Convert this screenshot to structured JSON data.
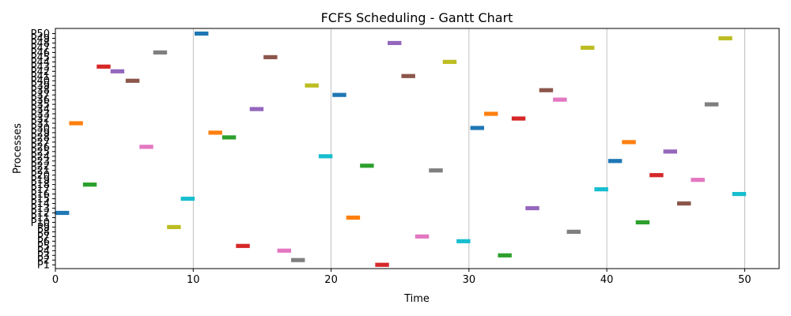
{
  "chart_data": {
    "type": "gantt",
    "title": "FCFS Scheduling - Gantt Chart",
    "xlabel": "Time",
    "ylabel": "Processes",
    "xlim": [
      0,
      52.5
    ],
    "xticks": [
      "0",
      "10",
      "20",
      "30",
      "40",
      "50"
    ],
    "xtick_values": [
      0,
      10,
      20,
      30,
      40,
      50
    ],
    "grid": "vertical",
    "series": [
      {
        "name": "P1",
        "start": 23.2,
        "end": 24.2,
        "color": "#d62728"
      },
      {
        "name": "P2",
        "start": 17.1,
        "end": 18.1,
        "color": "#7f7f7f"
      },
      {
        "name": "P3",
        "start": 32.1,
        "end": 33.1,
        "color": "#2ca02c"
      },
      {
        "name": "P4",
        "start": 16.1,
        "end": 17.1,
        "color": "#e377c2"
      },
      {
        "name": "P5",
        "start": 13.1,
        "end": 14.1,
        "color": "#d62728"
      },
      {
        "name": "P6",
        "start": 29.1,
        "end": 30.1,
        "color": "#17becf"
      },
      {
        "name": "P7",
        "start": 26.1,
        "end": 27.1,
        "color": "#e377c2"
      },
      {
        "name": "P8",
        "start": 37.1,
        "end": 38.1,
        "color": "#7f7f7f"
      },
      {
        "name": "P9",
        "start": 8.1,
        "end": 9.1,
        "color": "#bcbd22"
      },
      {
        "name": "P10",
        "start": 42.1,
        "end": 43.1,
        "color": "#2ca02c"
      },
      {
        "name": "P11",
        "start": 21.1,
        "end": 22.1,
        "color": "#ff7f0e"
      },
      {
        "name": "P12",
        "start": 0.0,
        "end": 1.0,
        "color": "#1f77b4"
      },
      {
        "name": "P13",
        "start": 34.1,
        "end": 35.1,
        "color": "#9467bd"
      },
      {
        "name": "P14",
        "start": 45.1,
        "end": 46.1,
        "color": "#8c564b"
      },
      {
        "name": "P15",
        "start": 9.1,
        "end": 10.1,
        "color": "#17becf"
      },
      {
        "name": "P16",
        "start": 49.1,
        "end": 50.1,
        "color": "#17becf"
      },
      {
        "name": "P17",
        "start": 39.1,
        "end": 40.1,
        "color": "#17becf"
      },
      {
        "name": "P18",
        "start": 2.0,
        "end": 3.0,
        "color": "#2ca02c"
      },
      {
        "name": "P19",
        "start": 46.1,
        "end": 47.1,
        "color": "#e377c2"
      },
      {
        "name": "P20",
        "start": 43.1,
        "end": 44.1,
        "color": "#d62728"
      },
      {
        "name": "P21",
        "start": 27.1,
        "end": 28.1,
        "color": "#7f7f7f"
      },
      {
        "name": "P22",
        "start": 22.1,
        "end": 23.1,
        "color": "#2ca02c"
      },
      {
        "name": "P23",
        "start": 40.1,
        "end": 41.1,
        "color": "#1f77b4"
      },
      {
        "name": "P24",
        "start": 19.1,
        "end": 20.1,
        "color": "#17becf"
      },
      {
        "name": "P25",
        "start": 44.1,
        "end": 45.1,
        "color": "#9467bd"
      },
      {
        "name": "P26",
        "start": 6.1,
        "end": 7.1,
        "color": "#e377c2"
      },
      {
        "name": "P27",
        "start": 41.1,
        "end": 42.1,
        "color": "#ff7f0e"
      },
      {
        "name": "P28",
        "start": 12.1,
        "end": 13.1,
        "color": "#2ca02c"
      },
      {
        "name": "P29",
        "start": 11.1,
        "end": 12.1,
        "color": "#ff7f0e"
      },
      {
        "name": "P30",
        "start": 30.1,
        "end": 31.1,
        "color": "#1f77b4"
      },
      {
        "name": "P31",
        "start": 1.0,
        "end": 2.0,
        "color": "#ff7f0e"
      },
      {
        "name": "P32",
        "start": 33.1,
        "end": 34.1,
        "color": "#d62728"
      },
      {
        "name": "P33",
        "start": 31.1,
        "end": 32.1,
        "color": "#ff7f0e"
      },
      {
        "name": "P34",
        "start": 14.1,
        "end": 15.1,
        "color": "#9467bd"
      },
      {
        "name": "P35",
        "start": 47.1,
        "end": 48.1,
        "color": "#7f7f7f"
      },
      {
        "name": "P36",
        "start": 36.1,
        "end": 37.1,
        "color": "#e377c2"
      },
      {
        "name": "P37",
        "start": 20.1,
        "end": 21.1,
        "color": "#1f77b4"
      },
      {
        "name": "P38",
        "start": 35.1,
        "end": 36.1,
        "color": "#8c564b"
      },
      {
        "name": "P39",
        "start": 18.1,
        "end": 19.1,
        "color": "#bcbd22"
      },
      {
        "name": "P40",
        "start": 5.1,
        "end": 6.1,
        "color": "#8c564b"
      },
      {
        "name": "P41",
        "start": 25.1,
        "end": 26.1,
        "color": "#8c564b"
      },
      {
        "name": "P42",
        "start": 4.0,
        "end": 5.0,
        "color": "#9467bd"
      },
      {
        "name": "P43",
        "start": 3.0,
        "end": 4.0,
        "color": "#d62728"
      },
      {
        "name": "P44",
        "start": 28.1,
        "end": 29.1,
        "color": "#bcbd22"
      },
      {
        "name": "P45",
        "start": 15.1,
        "end": 16.1,
        "color": "#8c564b"
      },
      {
        "name": "P46",
        "start": 7.1,
        "end": 8.1,
        "color": "#7f7f7f"
      },
      {
        "name": "P47",
        "start": 38.1,
        "end": 39.1,
        "color": "#bcbd22"
      },
      {
        "name": "P48",
        "start": 24.1,
        "end": 25.1,
        "color": "#9467bd"
      },
      {
        "name": "P49",
        "start": 48.1,
        "end": 49.1,
        "color": "#bcbd22"
      },
      {
        "name": "P50",
        "start": 10.1,
        "end": 11.1,
        "color": "#1f77b4"
      }
    ]
  }
}
